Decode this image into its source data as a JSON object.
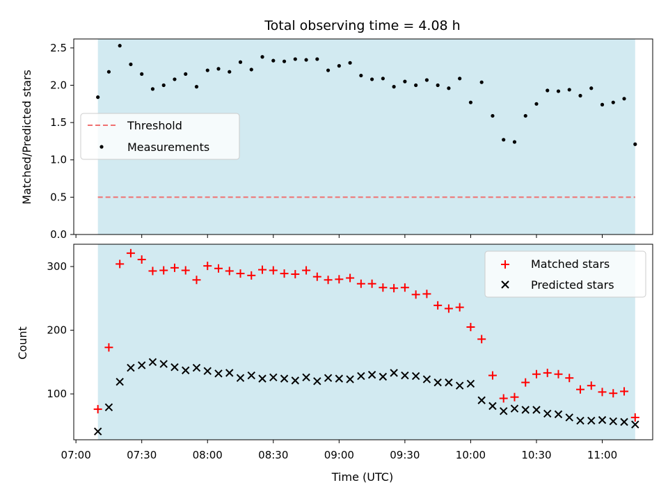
{
  "title": "Total observing time = 4.08 h",
  "chart_data": [
    {
      "type": "scatter",
      "ylabel": "Matched/Predicted stars",
      "ylim": [
        0,
        2.62
      ],
      "yticks": [
        0.0,
        0.5,
        1.0,
        1.5,
        2.0,
        2.5
      ],
      "ytick_labels": [
        "0.0",
        "0.5",
        "1.0",
        "1.5",
        "2.0",
        "2.5"
      ],
      "shaded_span": [
        "07:10",
        "11:15"
      ],
      "shade_color": "#add8e6",
      "threshold": {
        "name": "Threshold",
        "value": 0.5,
        "color": "#f07070"
      },
      "legend": {
        "position": "center-left",
        "threshold_label": "Threshold",
        "measurements_label": "Measurements"
      },
      "series": [
        {
          "name": "Measurements",
          "marker": "dot",
          "color": "#000000",
          "x": [
            "07:10",
            "07:15",
            "07:20",
            "07:25",
            "07:30",
            "07:35",
            "07:40",
            "07:45",
            "07:50",
            "07:55",
            "08:00",
            "08:05",
            "08:10",
            "08:15",
            "08:20",
            "08:25",
            "08:30",
            "08:35",
            "08:40",
            "08:45",
            "08:50",
            "08:55",
            "09:00",
            "09:05",
            "09:10",
            "09:15",
            "09:20",
            "09:25",
            "09:30",
            "09:35",
            "09:40",
            "09:45",
            "09:50",
            "09:55",
            "10:00",
            "10:05",
            "10:10",
            "10:15",
            "10:20",
            "10:25",
            "10:30",
            "10:35",
            "10:40",
            "10:45",
            "10:50",
            "10:55",
            "11:00",
            "11:05",
            "11:10",
            "11:15"
          ],
          "y": [
            1.84,
            2.18,
            2.53,
            2.28,
            2.15,
            1.95,
            2.0,
            2.08,
            2.15,
            1.98,
            2.2,
            2.22,
            2.18,
            2.31,
            2.21,
            2.38,
            2.33,
            2.32,
            2.35,
            2.34,
            2.35,
            2.2,
            2.26,
            2.3,
            2.13,
            2.08,
            2.09,
            1.98,
            2.05,
            2.0,
            2.07,
            2.0,
            1.96,
            2.09,
            1.77,
            2.04,
            1.59,
            1.27,
            1.24,
            1.59,
            1.75,
            1.93,
            1.92,
            1.94,
            1.86,
            1.96,
            1.74,
            1.77,
            1.82,
            1.21
          ]
        }
      ]
    },
    {
      "type": "scatter",
      "xlabel": "Time (UTC)",
      "ylabel": "Count",
      "ylim": [
        28,
        335
      ],
      "yticks": [
        100,
        200,
        300
      ],
      "ytick_labels": [
        "100",
        "200",
        "300"
      ],
      "xlim": [
        "06:59",
        "11:23"
      ],
      "xticks": [
        "07:00",
        "07:30",
        "08:00",
        "08:30",
        "09:00",
        "09:30",
        "10:00",
        "10:30",
        "11:00"
      ],
      "xtick_labels": [
        "07:00",
        "07:30",
        "08:00",
        "08:30",
        "09:00",
        "09:30",
        "10:00",
        "10:30",
        "11:00"
      ],
      "shaded_span": [
        "07:10",
        "11:15"
      ],
      "shade_color": "#add8e6",
      "legend": {
        "position": "top-right",
        "matched_label": "Matched stars",
        "predicted_label": "Predicted stars"
      },
      "series": [
        {
          "name": "Matched stars",
          "marker": "plus",
          "color": "#ff0000",
          "x": [
            "07:10",
            "07:15",
            "07:20",
            "07:25",
            "07:30",
            "07:35",
            "07:40",
            "07:45",
            "07:50",
            "07:55",
            "08:00",
            "08:05",
            "08:10",
            "08:15",
            "08:20",
            "08:25",
            "08:30",
            "08:35",
            "08:40",
            "08:45",
            "08:50",
            "08:55",
            "09:00",
            "09:05",
            "09:10",
            "09:15",
            "09:20",
            "09:25",
            "09:30",
            "09:35",
            "09:40",
            "09:45",
            "09:50",
            "09:55",
            "10:00",
            "10:05",
            "10:10",
            "10:15",
            "10:20",
            "10:25",
            "10:30",
            "10:35",
            "10:40",
            "10:45",
            "10:50",
            "10:55",
            "11:00",
            "11:05",
            "11:10",
            "11:15"
          ],
          "y": [
            76,
            173,
            304,
            321,
            311,
            293,
            294,
            298,
            294,
            279,
            301,
            297,
            293,
            289,
            286,
            295,
            294,
            289,
            288,
            294,
            284,
            279,
            280,
            282,
            273,
            273,
            267,
            266,
            267,
            256,
            257,
            239,
            234,
            236,
            205,
            186,
            129,
            93,
            95,
            118,
            131,
            133,
            131,
            125,
            107,
            113,
            103,
            101,
            104,
            63
          ]
        },
        {
          "name": "Predicted stars",
          "marker": "x",
          "color": "#000000",
          "x": [
            "07:10",
            "07:15",
            "07:20",
            "07:25",
            "07:30",
            "07:35",
            "07:40",
            "07:45",
            "07:50",
            "07:55",
            "08:00",
            "08:05",
            "08:10",
            "08:15",
            "08:20",
            "08:25",
            "08:30",
            "08:35",
            "08:40",
            "08:45",
            "08:50",
            "08:55",
            "09:00",
            "09:05",
            "09:10",
            "09:15",
            "09:20",
            "09:25",
            "09:30",
            "09:35",
            "09:40",
            "09:45",
            "09:50",
            "09:55",
            "10:00",
            "10:05",
            "10:10",
            "10:15",
            "10:20",
            "10:25",
            "10:30",
            "10:35",
            "10:40",
            "10:45",
            "10:50",
            "10:55",
            "11:00",
            "11:05",
            "11:10",
            "11:15"
          ],
          "y": [
            41,
            79,
            119,
            141,
            145,
            150,
            147,
            142,
            137,
            141,
            136,
            132,
            133,
            125,
            129,
            124,
            126,
            124,
            121,
            126,
            120,
            125,
            124,
            123,
            128,
            130,
            127,
            133,
            129,
            128,
            123,
            118,
            118,
            113,
            116,
            90,
            81,
            73,
            77,
            75,
            75,
            69,
            68,
            63,
            58,
            58,
            59,
            57,
            56,
            52
          ]
        }
      ]
    }
  ]
}
